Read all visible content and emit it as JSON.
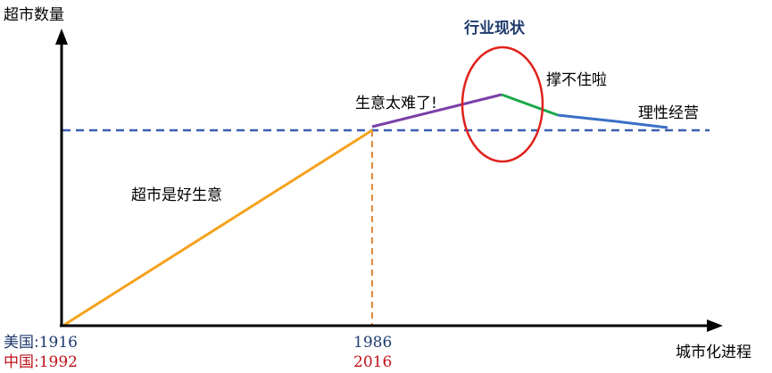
{
  "axes": {
    "y_label": "超市数量",
    "x_label": "城市化进程"
  },
  "header": {
    "title": "行业现状"
  },
  "annotations": {
    "phase_growth": "超市是好生意",
    "phase_difficult": "生意太难了!",
    "phase_struggle": "撑不住啦",
    "phase_rational": "理性经营"
  },
  "timeline": {
    "usa_label": "美国:",
    "usa_start": "1916",
    "china_label": "中国:",
    "china_start": "1992",
    "usa_mark": "1986",
    "china_mark": "2016"
  },
  "colors": {
    "axis": "#000000",
    "growth_line": "#f5a11c",
    "difficult_line": "#7a3fa8",
    "struggle_line": "#1aa84a",
    "rational_line": "#3a6fc6",
    "dashed_line": "#3a5fb0",
    "vertical_guide": "#e08a3c",
    "highlight_circle": "#e0211b",
    "title": "#1f3b6e",
    "usa_text": "#1f3b6e",
    "china_text": "#c0141a"
  }
}
